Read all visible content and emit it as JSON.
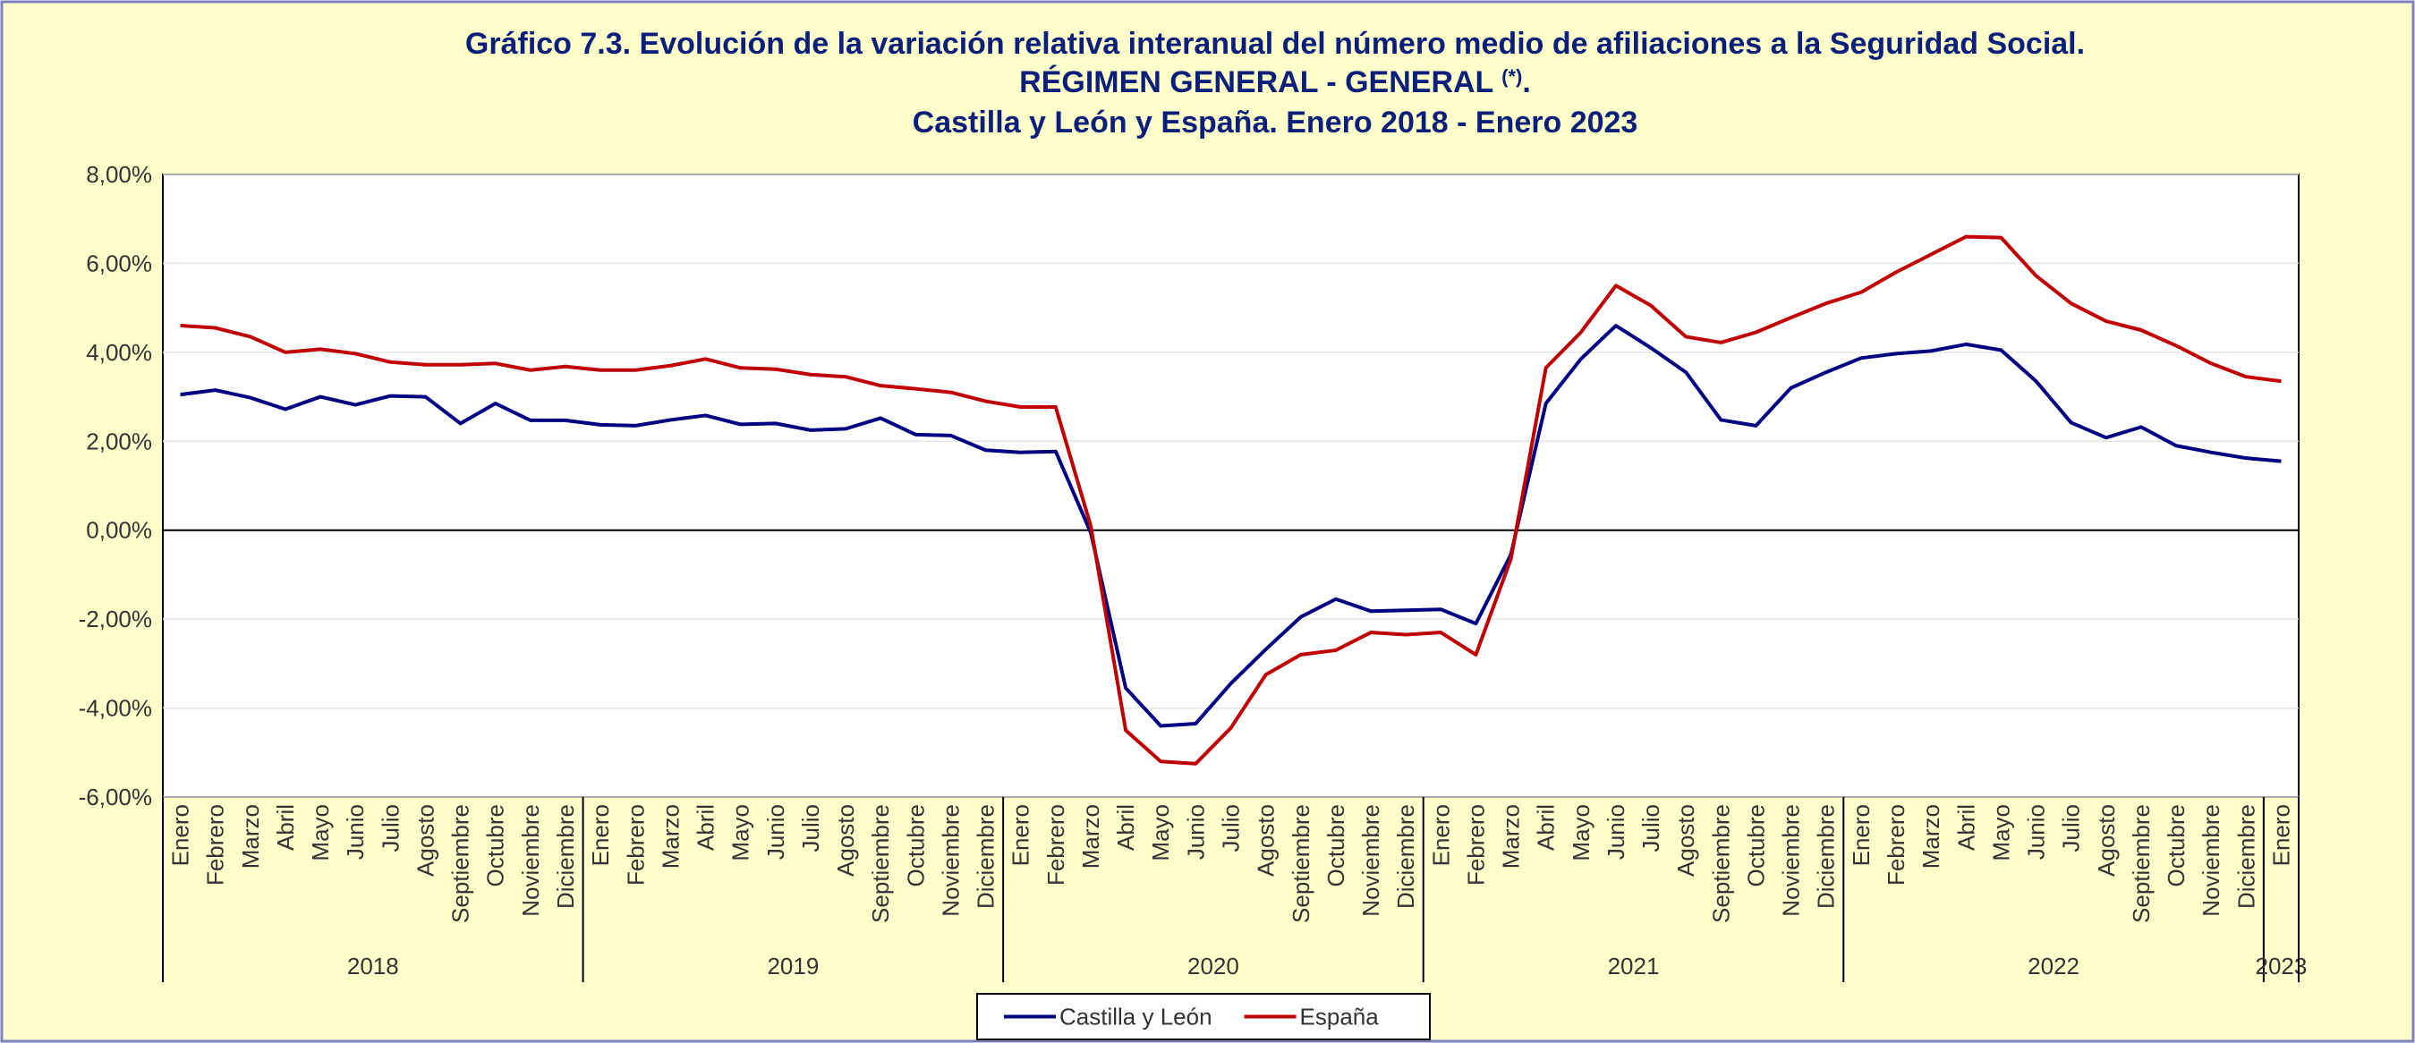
{
  "chart_data": {
    "type": "line",
    "title": "Gráfico 7.3. Evolución de la variación relativa interanual del número medio de afiliaciones a la Seguridad Social.",
    "subtitle": [
      "RÉGIMEN GENERAL - GENERAL",
      "(*)",
      "."
    ],
    "subtitle2": "Castilla y León y España. Enero 2018 - Enero 2023",
    "categories": [
      "Enero",
      "Febrero",
      "Marzo",
      "Abril",
      "Mayo",
      "Junio",
      "Julio",
      "Agosto",
      "Septiembre",
      "Octubre",
      "Noviembre",
      "Diciembre",
      "Enero",
      "Febrero",
      "Marzo",
      "Abril",
      "Mayo",
      "Junio",
      "Julio",
      "Agosto",
      "Septiembre",
      "Octubre",
      "Noviembre",
      "Diciembre",
      "Enero",
      "Febrero",
      "Marzo",
      "Abril",
      "Mayo",
      "Junio",
      "Julio",
      "Agosto",
      "Septiembre",
      "Octubre",
      "Noviembre",
      "Diciembre",
      "Enero",
      "Febrero",
      "Marzo",
      "Abril",
      "Mayo",
      "Junio",
      "Julio",
      "Agosto",
      "Septiembre",
      "Octubre",
      "Noviembre",
      "Diciembre",
      "Enero",
      "Febrero",
      "Marzo",
      "Abril",
      "Mayo",
      "Junio",
      "Julio",
      "Agosto",
      "Septiembre",
      "Octubre",
      "Noviembre",
      "Diciembre",
      "Enero"
    ],
    "x_groups": [
      "2018",
      "2019",
      "2020",
      "2021",
      "2022",
      "2023"
    ],
    "series": [
      {
        "name": "Castilla y León",
        "color": "#000080",
        "values": [
          3.05,
          3.15,
          2.98,
          2.72,
          3.0,
          2.82,
          3.02,
          3.0,
          2.4,
          2.85,
          2.47,
          2.47,
          2.37,
          2.35,
          2.48,
          2.58,
          2.38,
          2.4,
          2.25,
          2.28,
          2.52,
          2.15,
          2.13,
          1.8,
          1.75,
          1.77,
          -0.05,
          -3.55,
          -4.4,
          -4.35,
          -3.45,
          -2.68,
          -1.95,
          -1.55,
          -1.82,
          -1.8,
          -1.78,
          -2.1,
          -0.55,
          2.85,
          3.85,
          4.6,
          4.1,
          3.55,
          2.48,
          2.35,
          3.2,
          3.55,
          3.87,
          3.97,
          4.03,
          4.18,
          4.05,
          3.35,
          2.42,
          2.08,
          2.32,
          1.9,
          1.75,
          1.62,
          1.55
        ]
      },
      {
        "name": "España",
        "color": "#c00000",
        "values": [
          4.6,
          4.55,
          4.35,
          4.0,
          4.07,
          3.97,
          3.78,
          3.72,
          3.72,
          3.75,
          3.6,
          3.68,
          3.6,
          3.6,
          3.7,
          3.85,
          3.65,
          3.62,
          3.5,
          3.45,
          3.25,
          3.18,
          3.1,
          2.9,
          2.77,
          2.77,
          0.1,
          -4.5,
          -5.2,
          -5.25,
          -4.45,
          -3.25,
          -2.8,
          -2.7,
          -2.3,
          -2.35,
          -2.3,
          -2.8,
          -0.65,
          3.65,
          4.45,
          5.5,
          5.05,
          4.35,
          4.22,
          4.45,
          4.78,
          5.1,
          5.35,
          5.8,
          6.2,
          6.6,
          6.58,
          5.72,
          5.1,
          4.7,
          4.5,
          4.15,
          3.75,
          3.45,
          3.35
        ]
      }
    ],
    "ylim": [
      -6,
      8
    ],
    "yticks": [
      {
        "value": -6,
        "label": "-6,00%"
      },
      {
        "value": -4,
        "label": "-4,00%"
      },
      {
        "value": -2,
        "label": "-2,00%"
      },
      {
        "value": 0,
        "label": "0,00%"
      },
      {
        "value": 2,
        "label": "2,00%"
      },
      {
        "value": 4,
        "label": "4,00%"
      },
      {
        "value": 6,
        "label": "6,00%"
      },
      {
        "value": 8,
        "label": "8,00%"
      }
    ],
    "grid": true,
    "legend": "bottom"
  }
}
